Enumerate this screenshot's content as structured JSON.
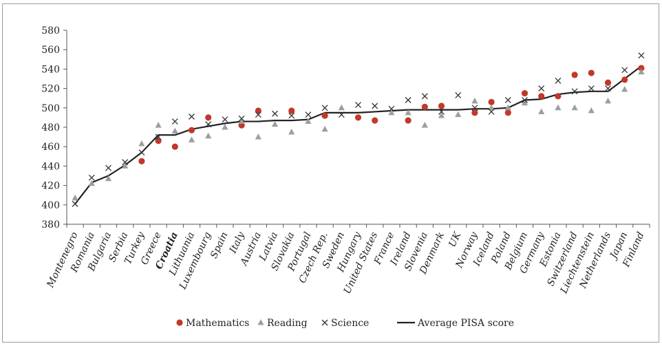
{
  "chart_data": {
    "type": "line",
    "ylim": [
      380,
      580
    ],
    "yticks": [
      380,
      400,
      420,
      440,
      460,
      480,
      500,
      520,
      540,
      560,
      580
    ],
    "categories": [
      "Montenegro",
      "Romania",
      "Bulgaria",
      "Serbia",
      "Turkey",
      "Greece",
      "Croatia",
      "Lithuania",
      "Luxembourg",
      "Spain",
      "Italy",
      "Austria",
      "Latvia",
      "Slovakia",
      "Portugal",
      "Czech Rep.",
      "Sweden",
      "Hungary",
      "United States",
      "France",
      "Ireland",
      "Slovenia",
      "Denmark",
      "UK",
      "Norway",
      "Iceland",
      "Poland",
      "Belgium",
      "Germany",
      "Estonia",
      "Switzerland",
      "Liechtenstein",
      "Netherlands",
      "Japan",
      "Finland"
    ],
    "highlight_category": "Croatia",
    "series": [
      {
        "name": "Mathematics",
        "marker": "circle",
        "color": "#c0392b",
        "values": [
          null,
          null,
          null,
          null,
          445,
          466,
          460,
          477,
          490,
          null,
          482,
          497,
          null,
          497,
          null,
          492,
          null,
          490,
          487,
          null,
          487,
          501,
          502,
          null,
          495,
          506,
          495,
          515,
          512,
          512,
          534,
          536,
          526,
          529,
          541
        ]
      },
      {
        "name": "Reading",
        "marker": "triangle",
        "color": "#9e9e9e",
        "values": [
          407,
          422,
          427,
          440,
          463,
          482,
          476,
          467,
          471,
          480,
          486,
          470,
          483,
          475,
          486,
          478,
          500,
          null,
          null,
          495,
          495,
          482,
          492,
          493,
          507,
          500,
          500,
          505,
          496,
          500,
          500,
          497,
          507,
          519,
          537
        ]
      },
      {
        "name": "Science",
        "marker": "cross",
        "color": "#333333",
        "values": [
          401,
          428,
          438,
          444,
          454,
          470,
          486,
          491,
          483,
          488,
          489,
          493,
          494,
          492,
          493,
          500,
          493,
          503,
          502,
          499,
          508,
          512,
          496,
          513,
          500,
          496,
          508,
          508,
          520,
          528,
          517,
          520,
          520,
          539,
          554
        ]
      },
      {
        "name": "Average PISA score",
        "marker": "line",
        "color": "#222222",
        "values": [
          401,
          423,
          430,
          441,
          454,
          472,
          472,
          478,
          481,
          484,
          486,
          486,
          487,
          487,
          488,
          495,
          495,
          495,
          496,
          497,
          498,
          498,
          498,
          498,
          499,
          499,
          500,
          508,
          509,
          514,
          516,
          517,
          517,
          530,
          543
        ]
      }
    ],
    "legend_position": "bottom",
    "grid": false
  }
}
